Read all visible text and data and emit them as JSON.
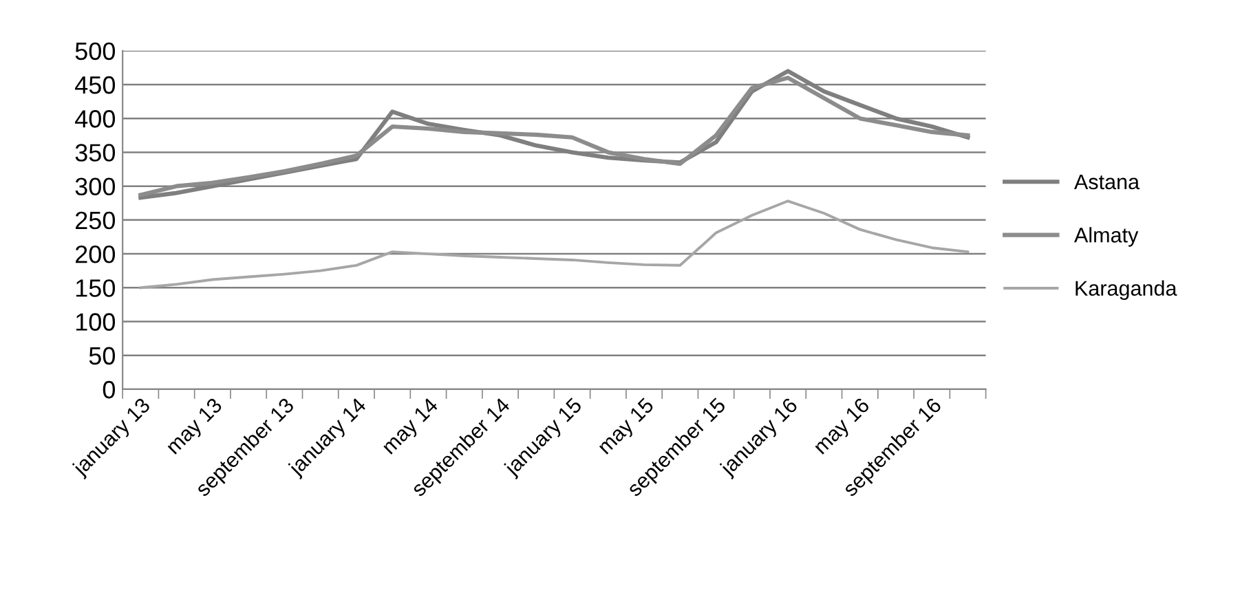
{
  "chart_data": {
    "type": "line",
    "categories": [
      "january 13",
      null,
      "may 13",
      null,
      "september 13",
      null,
      "january 14",
      null,
      "may 14",
      null,
      "september 14",
      null,
      "january 15",
      null,
      "may 15",
      null,
      "september 15",
      null,
      "january 16",
      null,
      "may 16",
      null,
      "september 16",
      null
    ],
    "series": [
      {
        "name": "Astana",
        "color": "#7f7f7f",
        "values": [
          283,
          290,
          300,
          310,
          320,
          330,
          340,
          410,
          392,
          383,
          375,
          360,
          350,
          342,
          338,
          335,
          365,
          440,
          470,
          440,
          420,
          400,
          388,
          372
        ]
      },
      {
        "name": "Almaty",
        "color": "#8c8c8c",
        "values": [
          287,
          300,
          305,
          313,
          322,
          333,
          345,
          388,
          385,
          380,
          378,
          376,
          372,
          350,
          340,
          333,
          375,
          445,
          460,
          430,
          400,
          390,
          380,
          375
        ]
      },
      {
        "name": "Karaganda",
        "color": "#a6a6a6",
        "values": [
          150,
          155,
          162,
          166,
          170,
          175,
          183,
          203,
          200,
          197,
          195,
          193,
          191,
          187,
          184,
          183,
          231,
          257,
          278,
          260,
          236,
          221,
          209,
          203
        ]
      }
    ],
    "ylim": [
      0,
      500
    ],
    "yticks": [
      0,
      50,
      100,
      150,
      200,
      250,
      300,
      350,
      400,
      450,
      500
    ],
    "grid": "y",
    "legend": "right",
    "marker": "none",
    "line_style": "solid"
  }
}
